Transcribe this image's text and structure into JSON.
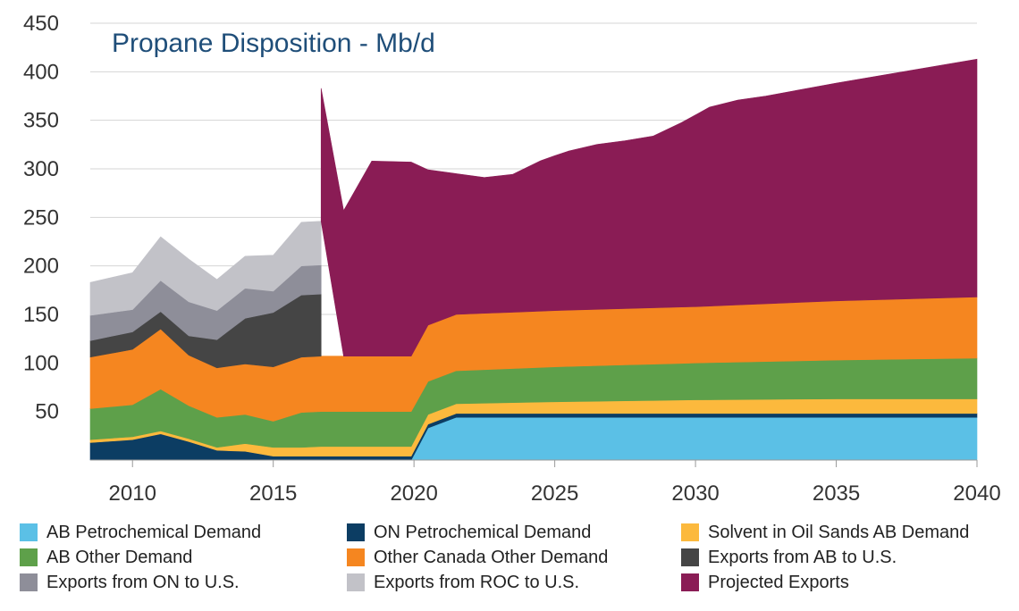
{
  "chart_data": {
    "type": "area",
    "stacked": true,
    "title": "Propane Disposition - Mb/d",
    "xlabel": "",
    "ylabel": "",
    "xlim": [
      2008.5,
      2040
    ],
    "ylim": [
      0,
      450
    ],
    "x_ticks": [
      2010,
      2015,
      2020,
      2025,
      2030,
      2035,
      2040
    ],
    "x_tick_labels": [
      "2010",
      "2015",
      "2020",
      "2025",
      "2030",
      "2035",
      "2040"
    ],
    "y_ticks": [
      50,
      100,
      150,
      200,
      250,
      300,
      350,
      400,
      450
    ],
    "y_tick_labels": [
      "50",
      "100",
      "150",
      "200",
      "250",
      "300",
      "350",
      "400",
      "450"
    ],
    "grid": "horizontal",
    "legend_position": "bottom",
    "series": [
      {
        "name": "AB Petrochemical Demand",
        "color": "#5bc0e6",
        "x": [
          2008.5,
          2019.9,
          2020.5,
          2021.5,
          2040
        ],
        "values": [
          0,
          0,
          33,
          44,
          44
        ]
      },
      {
        "name": "ON Petrochemical Demand",
        "color": "#0c3d63",
        "x": [
          2008.5,
          2010,
          2011,
          2012,
          2013,
          2014,
          2015,
          2016,
          2016.7,
          2019.9,
          2020.5,
          2021.5,
          2040
        ],
        "values": [
          18,
          21,
          27,
          19,
          10,
          9,
          4,
          4,
          4,
          4,
          4,
          4,
          4
        ]
      },
      {
        "name": "Solvent in Oil Sands AB Demand",
        "color": "#fcb93d",
        "x": [
          2008.5,
          2010,
          2011,
          2012,
          2013,
          2014,
          2015,
          2016,
          2016.7,
          2019.9,
          2020.5,
          2021.5,
          2025,
          2030,
          2035,
          2040
        ],
        "values": [
          3,
          3,
          3,
          3,
          3,
          8,
          9,
          9,
          10,
          10,
          10,
          10,
          12,
          14,
          15,
          15
        ]
      },
      {
        "name": "AB Other Demand",
        "color": "#5ea04a",
        "x": [
          2008.5,
          2010,
          2011,
          2012,
          2013,
          2014,
          2015,
          2016,
          2016.7,
          2019.9,
          2020.5,
          2021.5,
          2025,
          2030,
          2035,
          2040
        ],
        "values": [
          32,
          33,
          43,
          34,
          31,
          30,
          27,
          36,
          36,
          36,
          34,
          34,
          36,
          38,
          40,
          42
        ]
      },
      {
        "name": "Other Canada Other Demand",
        "color": "#f58620",
        "x": [
          2008.5,
          2010,
          2011,
          2012,
          2013,
          2014,
          2015,
          2016,
          2016.7,
          2019.9,
          2020.5,
          2021.5,
          2025,
          2030,
          2035,
          2040
        ],
        "values": [
          53,
          57,
          62,
          52,
          51,
          52,
          56,
          57,
          57,
          57,
          58,
          58,
          58,
          58,
          61,
          63
        ]
      },
      {
        "name": "Exports from AB to U.S.",
        "color": "#454545",
        "x": [
          2008.5,
          2010,
          2011,
          2012,
          2013,
          2014,
          2015,
          2016,
          2016.7
        ],
        "values": [
          17,
          18,
          18,
          20,
          29,
          47,
          56,
          64,
          64
        ]
      },
      {
        "name": "Exports from ON to U.S.",
        "color": "#8e8e99",
        "x": [
          2008.5,
          2010,
          2011,
          2012,
          2013,
          2014,
          2015,
          2016,
          2016.7
        ],
        "values": [
          26,
          23,
          32,
          35,
          30,
          31,
          22,
          30,
          30
        ]
      },
      {
        "name": "Exports from ROC to U.S.",
        "color": "#c2c2c8",
        "x": [
          2008.5,
          2010,
          2011,
          2012,
          2013,
          2014,
          2015,
          2016,
          2016.7
        ],
        "values": [
          34,
          38,
          45,
          44,
          32,
          33,
          37,
          45,
          45
        ]
      },
      {
        "name": "Projected Exports",
        "color": "#8a1c55",
        "x": [
          2016.7,
          2017.5,
          2018.5,
          2019.9,
          2020.5,
          2021.5,
          2022.5,
          2023.5,
          2024.5,
          2025.5,
          2026.5,
          2027.5,
          2028.5,
          2029.5,
          2030.5,
          2031.5,
          2032.5,
          2040
        ],
        "values": [
          137,
          150,
          201,
          200,
          160,
          145,
          140,
          142,
          155,
          164,
          170,
          173,
          177,
          190,
          205,
          211,
          214,
          245
        ]
      }
    ]
  },
  "legend": {
    "items": [
      {
        "label": "AB Petrochemical Demand",
        "color": "#5bc0e6"
      },
      {
        "label": "ON Petrochemical Demand",
        "color": "#0c3d63"
      },
      {
        "label": "Solvent in Oil Sands AB Demand",
        "color": "#fcb93d"
      },
      {
        "label": "AB Other Demand",
        "color": "#5ea04a"
      },
      {
        "label": "Other Canada Other Demand",
        "color": "#f58620"
      },
      {
        "label": "Exports from AB to U.S.",
        "color": "#454545"
      },
      {
        "label": "Exports from ON to U.S.",
        "color": "#8e8e99"
      },
      {
        "label": "Exports from ROC to U.S.",
        "color": "#c2c2c8"
      },
      {
        "label": "Projected Exports",
        "color": "#8a1c55"
      }
    ]
  }
}
